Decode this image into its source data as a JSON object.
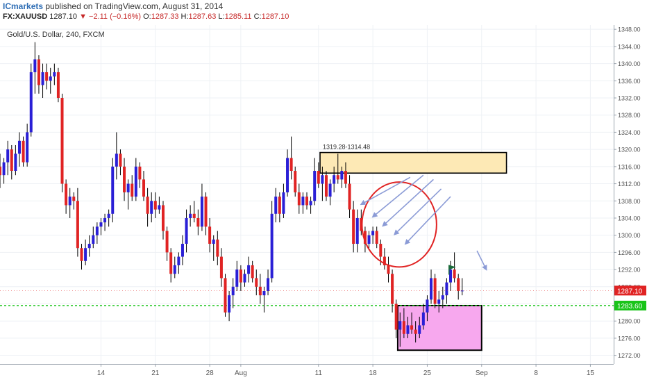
{
  "header": {
    "publisher": "ICmarkets",
    "published_text": "published on TradingView.com, August 31, 2014",
    "symbol": "FX:XAUUSD",
    "last": "1287.10",
    "change_arrow": "▼",
    "change": "−2.11 (−0.16%)",
    "open_label": "O:",
    "open": "1287.33",
    "high_label": "H:",
    "high": "1287.63",
    "low_label": "L:",
    "low": "1285.11",
    "close_label": "C:",
    "close": "1287.10"
  },
  "chart_data": {
    "type": "candlestick",
    "title": "Gold/U.S. Dollar, 240, FXCM",
    "ylim": [
      1270,
      1349
    ],
    "y_ticks": [
      1272,
      1276,
      1280,
      1284,
      1288,
      1292,
      1296,
      1300,
      1304,
      1308,
      1312,
      1316,
      1320,
      1324,
      1328,
      1332,
      1336,
      1340,
      1344,
      1348
    ],
    "x_tick_labels": [
      "14",
      "21",
      "28",
      "Aug",
      "11",
      "18",
      "25",
      "Sep",
      "8",
      "15"
    ],
    "x_tick_positions": [
      14,
      21,
      28,
      32,
      42,
      49,
      56,
      63,
      70,
      77
    ],
    "x_range": [
      1,
      80
    ],
    "grid": true,
    "last_price": 1287.1,
    "last_price_label": "1287.10",
    "support_level": 1283.6,
    "support_label": "1283.60",
    "resistance_zone": {
      "label": "1319.28-1314.48",
      "top": 1319.28,
      "bottom": 1314.48,
      "x_from": 42.2,
      "x_to": 66.2
    },
    "demand_zone": {
      "top": 1283.6,
      "bottom": 1273.2,
      "x_from": 52.2,
      "x_to": 63.0
    },
    "highlight_circle": {
      "cx": 52.4,
      "cy": 1302.5,
      "rx": 4.8,
      "ry": 1312.4
    },
    "flag_at": {
      "x": 58.8,
      "y": 1290.8
    },
    "arrows": [
      {
        "from": [
          53.8,
          1313.5
        ],
        "to": [
          47.5,
          1307.2
        ]
      },
      {
        "from": [
          55.5,
          1314.0
        ],
        "to": [
          49.0,
          1304.3
        ]
      },
      {
        "from": [
          56.8,
          1313.0
        ],
        "to": [
          50.3,
          1302.2
        ]
      },
      {
        "from": [
          57.8,
          1310.8
        ],
        "to": [
          51.8,
          1300.2
        ]
      },
      {
        "from": [
          59.0,
          1309.0
        ],
        "to": [
          53.2,
          1298.0
        ]
      },
      {
        "from": [
          62.4,
          1296.4
        ],
        "to": [
          63.6,
          1292.0
        ]
      }
    ],
    "candles": [
      [
        1.0,
        1316.0,
        1319.0,
        1311.0,
        1314.0
      ],
      [
        1.5,
        1314.0,
        1318.0,
        1312.0,
        1317.0
      ],
      [
        2.0,
        1317.0,
        1322.0,
        1314.0,
        1320.0
      ],
      [
        2.5,
        1320.0,
        1321.0,
        1313.0,
        1315.0
      ],
      [
        3.0,
        1315.0,
        1321.0,
        1314.0,
        1319.0
      ],
      [
        3.5,
        1319.0,
        1324.0,
        1316.0,
        1322.0
      ],
      [
        4.0,
        1322.0,
        1323.0,
        1316.0,
        1317.0
      ],
      [
        4.5,
        1317.0,
        1326.0,
        1316.0,
        1324.0
      ],
      [
        5.0,
        1324.0,
        1340.0,
        1323.0,
        1338.0
      ],
      [
        5.5,
        1338.0,
        1345.0,
        1333.0,
        1341.0
      ],
      [
        6.0,
        1341.0,
        1342.0,
        1333.0,
        1335.0
      ],
      [
        6.5,
        1335.0,
        1340.0,
        1332.0,
        1338.0
      ],
      [
        7.0,
        1338.0,
        1340.0,
        1334.0,
        1336.0
      ],
      [
        7.5,
        1336.0,
        1339.0,
        1333.0,
        1337.0
      ],
      [
        8.0,
        1337.0,
        1340.0,
        1335.0,
        1338.0
      ],
      [
        8.5,
        1338.0,
        1339.0,
        1331.0,
        1332.0
      ],
      [
        9.0,
        1332.0,
        1333.0,
        1310.0,
        1312.0
      ],
      [
        9.5,
        1312.0,
        1313.0,
        1305.0,
        1307.0
      ],
      [
        10.0,
        1307.0,
        1311.0,
        1304.0,
        1309.0
      ],
      [
        10.5,
        1309.0,
        1310.0,
        1306.0,
        1308.0
      ],
      [
        11.0,
        1308.0,
        1311.0,
        1295.0,
        1297.0
      ],
      [
        11.5,
        1297.0,
        1298.0,
        1292.0,
        1294.0
      ],
      [
        12.0,
        1294.0,
        1299.0,
        1293.0,
        1297.0
      ],
      [
        12.5,
        1297.0,
        1300.0,
        1295.0,
        1298.0
      ],
      [
        13.0,
        1298.0,
        1302.0,
        1297.0,
        1300.0
      ],
      [
        13.5,
        1300.0,
        1303.0,
        1298.0,
        1302.0
      ],
      [
        14.0,
        1302.0,
        1304.0,
        1300.0,
        1303.0
      ],
      [
        14.5,
        1303.0,
        1305.0,
        1301.0,
        1304.0
      ],
      [
        15.0,
        1304.0,
        1306.0,
        1302.0,
        1305.0
      ],
      [
        15.5,
        1305.0,
        1318.0,
        1303.0,
        1316.0
      ],
      [
        16.0,
        1316.0,
        1324.0,
        1313.0,
        1319.0
      ],
      [
        16.5,
        1319.0,
        1320.0,
        1314.0,
        1316.0
      ],
      [
        17.0,
        1316.0,
        1318.0,
        1308.0,
        1310.0
      ],
      [
        17.5,
        1310.0,
        1313.0,
        1306.0,
        1312.0
      ],
      [
        18.0,
        1312.0,
        1314.0,
        1308.0,
        1309.0
      ],
      [
        18.5,
        1309.0,
        1318.0,
        1308.0,
        1316.0
      ],
      [
        19.0,
        1316.0,
        1317.0,
        1311.0,
        1313.0
      ],
      [
        19.5,
        1313.0,
        1315.0,
        1308.0,
        1309.0
      ],
      [
        20.0,
        1309.0,
        1311.0,
        1302.0,
        1305.0
      ],
      [
        20.5,
        1305.0,
        1310.0,
        1303.0,
        1308.0
      ],
      [
        21.0,
        1308.0,
        1310.0,
        1304.0,
        1306.0
      ],
      [
        21.5,
        1306.0,
        1309.0,
        1305.0,
        1307.0
      ],
      [
        22.0,
        1307.0,
        1308.0,
        1299.0,
        1301.0
      ],
      [
        22.5,
        1301.0,
        1302.0,
        1294.0,
        1296.0
      ],
      [
        23.0,
        1296.0,
        1297.0,
        1289.0,
        1291.0
      ],
      [
        23.5,
        1291.0,
        1295.0,
        1290.0,
        1293.0
      ],
      [
        24.0,
        1293.0,
        1296.0,
        1291.0,
        1295.0
      ],
      [
        24.5,
        1295.0,
        1300.0,
        1293.0,
        1298.0
      ],
      [
        25.0,
        1298.0,
        1306.0,
        1296.0,
        1304.0
      ],
      [
        25.5,
        1304.0,
        1307.0,
        1302.0,
        1305.0
      ],
      [
        26.0,
        1305.0,
        1308.0,
        1303.0,
        1304.0
      ],
      [
        26.5,
        1304.0,
        1306.0,
        1300.0,
        1302.0
      ],
      [
        27.0,
        1302.0,
        1312.0,
        1301.0,
        1309.0
      ],
      [
        27.5,
        1309.0,
        1310.0,
        1300.0,
        1302.0
      ],
      [
        28.0,
        1302.0,
        1304.0,
        1296.0,
        1298.0
      ],
      [
        28.5,
        1298.0,
        1300.0,
        1294.0,
        1299.0
      ],
      [
        29.0,
        1299.0,
        1301.0,
        1293.0,
        1295.0
      ],
      [
        29.5,
        1295.0,
        1297.0,
        1288.0,
        1290.0
      ],
      [
        30.0,
        1290.0,
        1291.0,
        1281.0,
        1282.0
      ],
      [
        30.5,
        1282.0,
        1287.0,
        1280.0,
        1286.0
      ],
      [
        31.0,
        1286.0,
        1290.0,
        1283.0,
        1288.0
      ],
      [
        31.5,
        1288.0,
        1294.0,
        1287.0,
        1292.0
      ],
      [
        32.0,
        1292.0,
        1293.0,
        1287.0,
        1289.0
      ],
      [
        32.5,
        1289.0,
        1292.0,
        1288.0,
        1291.0
      ],
      [
        33.0,
        1291.0,
        1295.0,
        1289.0,
        1293.0
      ],
      [
        33.5,
        1293.0,
        1294.0,
        1289.0,
        1290.0
      ],
      [
        34.0,
        1290.0,
        1292.0,
        1286.0,
        1288.0
      ],
      [
        34.5,
        1288.0,
        1291.0,
        1284.0,
        1286.0
      ],
      [
        35.0,
        1286.0,
        1288.0,
        1282.0,
        1287.0
      ],
      [
        35.5,
        1287.0,
        1292.0,
        1286.0,
        1290.0
      ],
      [
        36.0,
        1290.0,
        1308.0,
        1289.0,
        1305.0
      ],
      [
        36.5,
        1305.0,
        1311.0,
        1303.0,
        1309.0
      ],
      [
        37.0,
        1309.0,
        1310.0,
        1303.0,
        1305.0
      ],
      [
        37.5,
        1305.0,
        1312.0,
        1304.0,
        1310.0
      ],
      [
        38.0,
        1310.0,
        1320.0,
        1309.0,
        1318.0
      ],
      [
        38.5,
        1318.0,
        1323.0,
        1313.0,
        1315.0
      ],
      [
        39.0,
        1315.0,
        1316.0,
        1309.0,
        1310.0
      ],
      [
        39.5,
        1310.0,
        1312.0,
        1305.0,
        1307.0
      ],
      [
        40.0,
        1307.0,
        1310.0,
        1305.0,
        1309.0
      ],
      [
        40.5,
        1309.0,
        1310.0,
        1306.0,
        1307.0
      ],
      [
        41.0,
        1307.0,
        1309.0,
        1305.0,
        1308.0
      ],
      [
        41.5,
        1308.0,
        1318.0,
        1307.0,
        1315.0
      ],
      [
        42.0,
        1315.0,
        1317.0,
        1311.0,
        1312.0
      ],
      [
        42.5,
        1312.0,
        1316.0,
        1308.0,
        1314.0
      ],
      [
        43.0,
        1314.0,
        1315.0,
        1308.0,
        1309.0
      ],
      [
        43.5,
        1309.0,
        1313.0,
        1307.0,
        1312.0
      ],
      [
        44.0,
        1312.0,
        1316.0,
        1310.0,
        1314.0
      ],
      [
        44.5,
        1314.0,
        1319.0,
        1312.0,
        1313.0
      ],
      [
        45.0,
        1313.0,
        1316.0,
        1311.0,
        1315.0
      ],
      [
        45.5,
        1315.0,
        1317.0,
        1311.0,
        1312.0
      ],
      [
        46.0,
        1312.0,
        1314.0,
        1304.0,
        1306.0
      ],
      [
        46.5,
        1306.0,
        1308.0,
        1296.0,
        1298.0
      ],
      [
        47.0,
        1298.0,
        1306.0,
        1296.0,
        1304.0
      ],
      [
        47.5,
        1304.0,
        1306.0,
        1300.0,
        1301.0
      ],
      [
        48.0,
        1301.0,
        1302.0,
        1296.0,
        1298.0
      ],
      [
        48.5,
        1298.0,
        1301.0,
        1297.0,
        1300.0
      ],
      [
        49.0,
        1300.0,
        1302.0,
        1298.0,
        1301.0
      ],
      [
        49.5,
        1301.0,
        1302.0,
        1297.0,
        1298.0
      ],
      [
        50.0,
        1298.0,
        1299.0,
        1293.0,
        1295.0
      ],
      [
        50.5,
        1295.0,
        1297.0,
        1292.0,
        1293.0
      ],
      [
        51.0,
        1293.0,
        1295.0,
        1289.0,
        1291.0
      ],
      [
        51.5,
        1291.0,
        1292.0,
        1282.0,
        1284.0
      ],
      [
        52.0,
        1284.0,
        1285.0,
        1276.0,
        1278.0
      ],
      [
        52.5,
        1278.0,
        1282.0,
        1274.0,
        1280.0
      ],
      [
        53.0,
        1280.0,
        1283.0,
        1276.0,
        1277.0
      ],
      [
        53.5,
        1277.0,
        1281.0,
        1276.0,
        1279.0
      ],
      [
        54.0,
        1279.0,
        1282.0,
        1277.0,
        1278.0
      ],
      [
        54.5,
        1278.0,
        1280.0,
        1275.0,
        1277.0
      ],
      [
        55.0,
        1277.0,
        1281.0,
        1276.0,
        1279.0
      ],
      [
        55.5,
        1279.0,
        1284.0,
        1278.0,
        1282.0
      ],
      [
        56.0,
        1282.0,
        1286.0,
        1280.0,
        1285.0
      ],
      [
        56.5,
        1285.0,
        1292.0,
        1284.0,
        1290.0
      ],
      [
        57.0,
        1290.0,
        1291.0,
        1283.0,
        1284.0
      ],
      [
        57.5,
        1284.0,
        1287.0,
        1282.0,
        1285.0
      ],
      [
        58.0,
        1285.0,
        1288.0,
        1283.0,
        1286.0
      ],
      [
        58.5,
        1286.0,
        1290.0,
        1284.0,
        1289.0
      ],
      [
        59.0,
        1289.0,
        1294.0,
        1287.0,
        1292.0
      ],
      [
        59.5,
        1292.0,
        1296.0,
        1289.0,
        1290.0
      ],
      [
        60.0,
        1290.0,
        1291.0,
        1285.0,
        1287.0
      ],
      [
        60.5,
        1287.0,
        1290.0,
        1286.0,
        1287.1
      ]
    ]
  }
}
